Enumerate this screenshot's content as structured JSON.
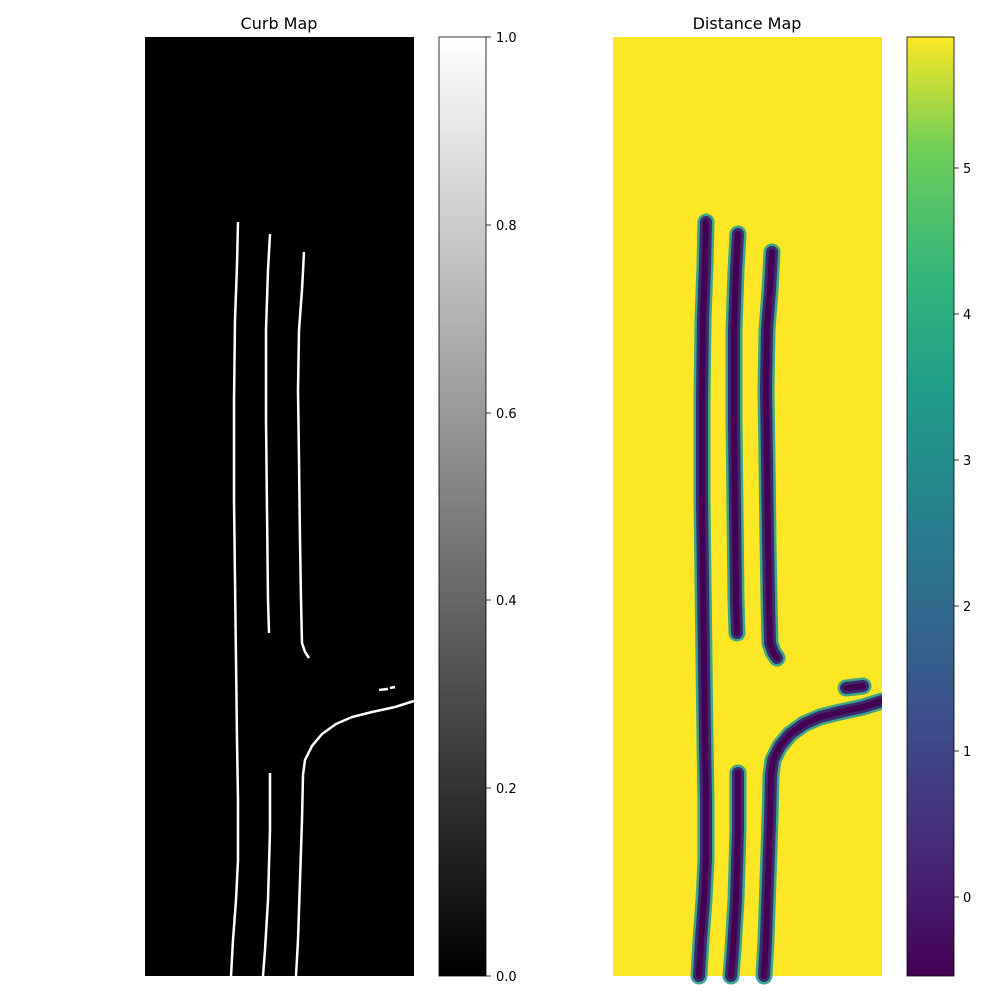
{
  "chart_data": [
    {
      "type": "heatmap",
      "title": "Curb Map",
      "colormap": "gray",
      "background_value": 0,
      "foreground_value": 1,
      "colorbar": {
        "range": [
          0.0,
          1.0
        ],
        "ticks": [
          "0.0",
          "0.2",
          "0.4",
          "0.6",
          "0.8",
          "1.0"
        ]
      },
      "axes": "off"
    },
    {
      "type": "heatmap",
      "title": "Distance Map",
      "colormap": "viridis",
      "background_value": 5.9,
      "near_curb_value": -0.5,
      "colorbar": {
        "range": [
          -0.55,
          5.9
        ],
        "ticks": [
          "0",
          "1",
          "2",
          "3",
          "4",
          "5"
        ]
      },
      "axes": "off"
    }
  ]
}
